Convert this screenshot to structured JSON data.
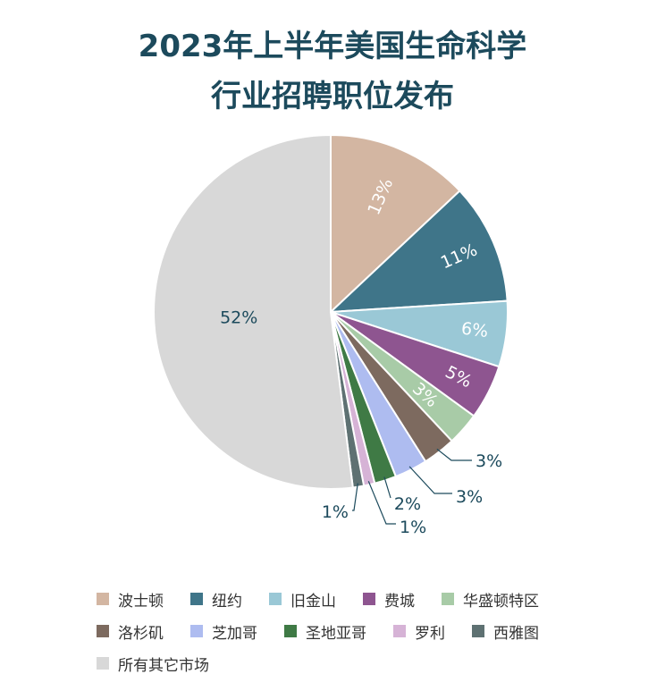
{
  "chart_data": {
    "type": "pie",
    "title": [
      "2023年上半年美国生命科学",
      "行业招聘职位发布"
    ],
    "slices": [
      {
        "name": "波士顿",
        "value": 13,
        "label": "13%",
        "color": "#d3b6a2"
      },
      {
        "name": "纽约",
        "value": 11,
        "label": "11%",
        "color": "#3f7589"
      },
      {
        "name": "旧金山",
        "value": 6,
        "label": "6%",
        "color": "#9ac8d6"
      },
      {
        "name": "费城",
        "value": 5,
        "label": "5%",
        "color": "#8e5590"
      },
      {
        "name": "华盛顿特区",
        "value": 3,
        "label": "3%",
        "color": "#a8cba7"
      },
      {
        "name": "洛杉矶",
        "value": 3,
        "label": "3%",
        "color": "#7d6a5f"
      },
      {
        "name": "芝加哥",
        "value": 3,
        "label": "3%",
        "color": "#aebcf0"
      },
      {
        "name": "圣地亚哥",
        "value": 2,
        "label": "2%",
        "color": "#3f7a45"
      },
      {
        "name": "罗利",
        "value": 1,
        "label": "1%",
        "color": "#d6b3d6"
      },
      {
        "name": "西雅图",
        "value": 1,
        "label": "1%",
        "color": "#5e7172"
      },
      {
        "name": "所有其它市场",
        "value": 52,
        "label": "52%",
        "color": "#d8d8d8"
      }
    ],
    "legend_rows": [
      [
        0,
        1,
        2,
        3,
        4
      ],
      [
        5,
        6,
        7,
        8,
        9
      ],
      [
        10
      ]
    ]
  }
}
